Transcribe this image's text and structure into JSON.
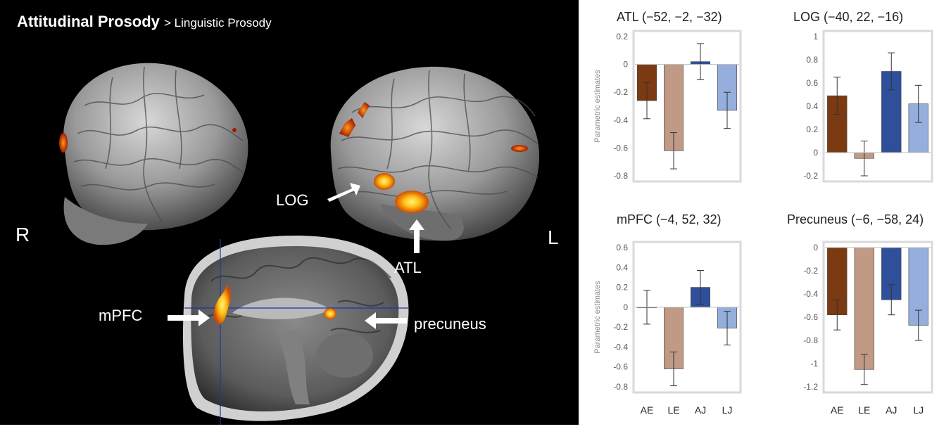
{
  "figure": {
    "title_bold": "Attitudinal Prosody",
    "title_rest": "> Linguistic Prosody",
    "side_right": "R",
    "side_left": "L",
    "labels": {
      "log": "LOG",
      "atl": "ATL",
      "mpfc": "mPFC",
      "precuneus": "precuneus"
    }
  },
  "colors": {
    "AE": "#7b3a12",
    "LE": "#c09a84",
    "AJ": "#2f4f9b",
    "LJ": "#95aedb",
    "activation_hot": "#ffd21a",
    "activation_mid": "#ff7a00",
    "activation_low": "#a81c00"
  },
  "chart_data": [
    {
      "type": "bar",
      "title": "ATL (−52, −2, −32)",
      "ylabel": "Parametric estimates",
      "categories": [
        "AE",
        "LE",
        "AJ",
        "LJ"
      ],
      "values": [
        -0.26,
        -0.62,
        0.02,
        -0.33
      ],
      "errors": [
        0.13,
        0.13,
        0.13,
        0.13
      ],
      "ylim": [
        -0.8,
        0.2
      ],
      "yticks": [
        0.2,
        0,
        -0.2,
        -0.4,
        -0.6,
        -0.8
      ],
      "ytick_labels": [
        "0.2",
        "0",
        "-0.2",
        "-0.4",
        "-0.6",
        "-0.8"
      ],
      "show_xlabels": false
    },
    {
      "type": "bar",
      "title": "LOG (−40, 22, −16)",
      "ylabel": "",
      "categories": [
        "AE",
        "LE",
        "AJ",
        "LJ"
      ],
      "values": [
        0.49,
        -0.05,
        0.7,
        0.42
      ],
      "errors": [
        0.16,
        0.15,
        0.16,
        0.16
      ],
      "ylim": [
        -0.2,
        1
      ],
      "yticks": [
        1,
        0.8,
        0.6,
        0.4,
        0.2,
        0,
        -0.2
      ],
      "ytick_labels": [
        "1",
        "0.8",
        "0.6",
        "0.4",
        "0.2",
        "0",
        "-0.2"
      ],
      "show_xlabels": false
    },
    {
      "type": "bar",
      "title": "mPFC (−4, 52, 32)",
      "ylabel": "Parametric estimates",
      "categories": [
        "AE",
        "LE",
        "AJ",
        "LJ"
      ],
      "values": [
        0.0,
        -0.62,
        0.2,
        -0.21
      ],
      "errors": [
        0.17,
        0.17,
        0.17,
        0.17
      ],
      "ylim": [
        -0.8,
        0.6
      ],
      "yticks": [
        0.6,
        0.4,
        0.2,
        0,
        -0.2,
        -0.4,
        -0.6,
        -0.8
      ],
      "ytick_labels": [
        "0.6",
        "0.4",
        "0.2",
        "0",
        "-0.2",
        "-0.4",
        "-0.6",
        "-0.8"
      ],
      "show_xlabels": true
    },
    {
      "type": "bar",
      "title": "Precuneus (−6, −58, 24)",
      "ylabel": "",
      "categories": [
        "AE",
        "LE",
        "AJ",
        "LJ"
      ],
      "values": [
        -0.58,
        -1.05,
        -0.45,
        -0.67
      ],
      "errors": [
        0.13,
        0.13,
        0.13,
        0.13
      ],
      "ylim": [
        -1.2,
        0
      ],
      "yticks": [
        0,
        -0.2,
        -0.4,
        -0.6,
        -0.8,
        -1,
        -1.2
      ],
      "ytick_labels": [
        "0",
        "-0.2",
        "-0.4",
        "-0.6",
        "-0.8",
        "-1",
        "-1.2"
      ],
      "show_xlabels": true
    }
  ]
}
